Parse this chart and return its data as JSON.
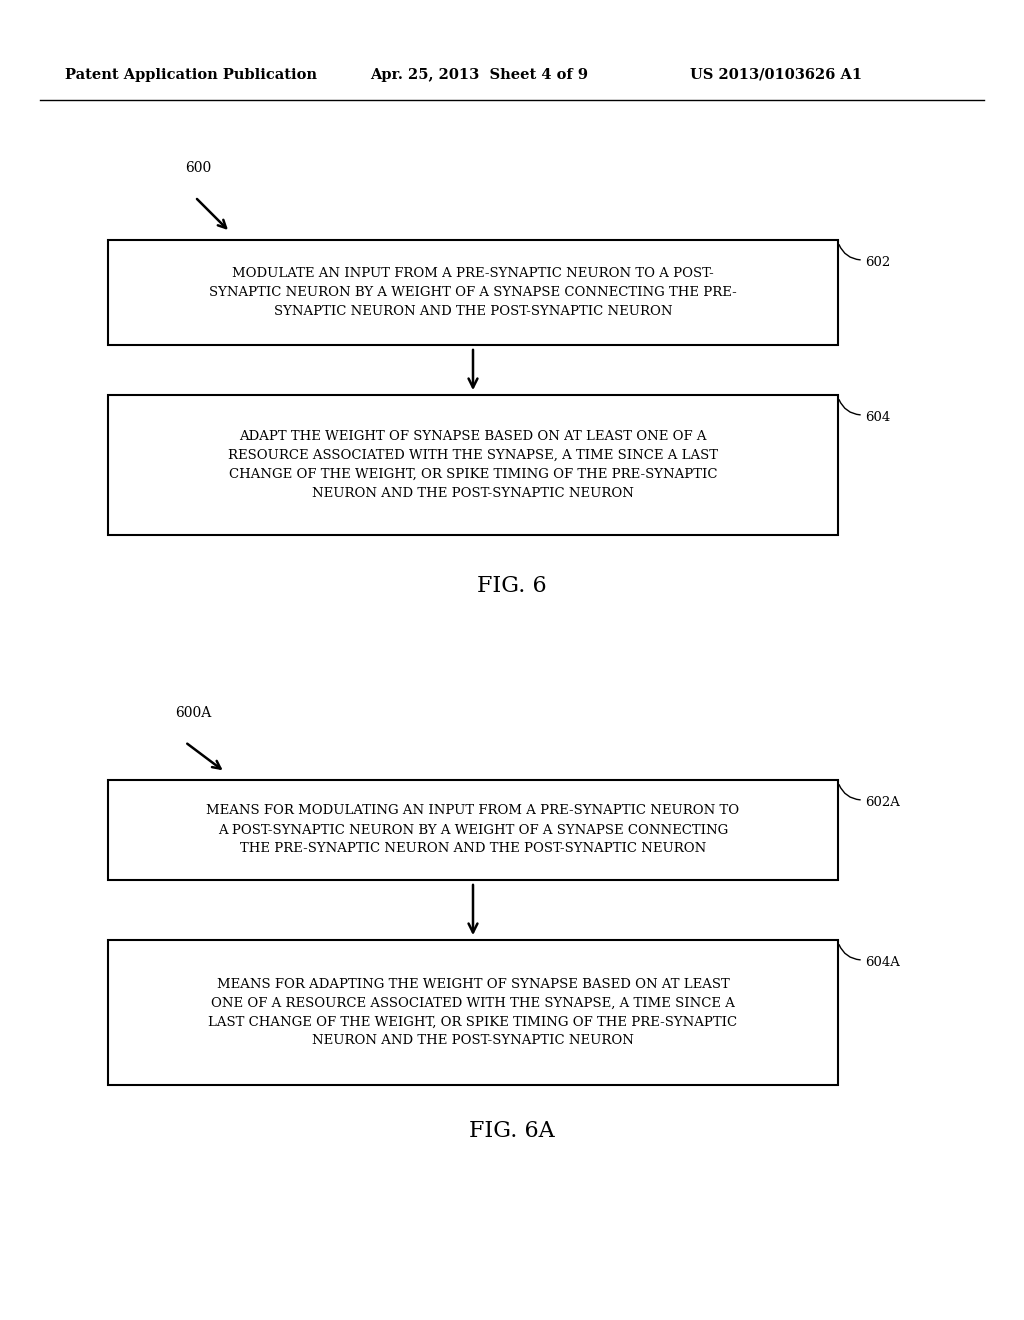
{
  "background_color": "#ffffff",
  "header_left": "Patent Application Publication",
  "header_date": "Apr. 25, 2013  Sheet 4 of 9",
  "header_patent": "US 2013/0103626 A1",
  "fig6": {
    "label": "FIG. 6",
    "start_label": "600",
    "box1_label": "602",
    "box2_label": "604",
    "box1_text": "MODULATE AN INPUT FROM A PRE-SYNAPTIC NEURON TO A POST-\nSYNAPTIC NEURON BY A WEIGHT OF A SYNAPSE CONNECTING THE PRE-\nSYNAPTIC NEURON AND THE POST-SYNAPTIC NEURON",
    "box2_text": "ADAPT THE WEIGHT OF SYNAPSE BASED ON AT LEAST ONE OF A\nRESOURCE ASSOCIATED WITH THE SYNAPSE, A TIME SINCE A LAST\nCHANGE OF THE WEIGHT, OR SPIKE TIMING OF THE PRE-SYNAPTIC\nNEURON AND THE POST-SYNAPTIC NEURON"
  },
  "fig6a": {
    "label": "FIG. 6A",
    "start_label": "600A",
    "box1_label": "602A",
    "box2_label": "604A",
    "box1_text": "MEANS FOR MODULATING AN INPUT FROM A PRE-SYNAPTIC NEURON TO\nA POST-SYNAPTIC NEURON BY A WEIGHT OF A SYNAPSE CONNECTING\nTHE PRE-SYNAPTIC NEURON AND THE POST-SYNAPTIC NEURON",
    "box2_text": "MEANS FOR ADAPTING THE WEIGHT OF SYNAPSE BASED ON AT LEAST\nONE OF A RESOURCE ASSOCIATED WITH THE SYNAPSE, A TIME SINCE A\nLAST CHANGE OF THE WEIGHT, OR SPIKE TIMING OF THE PRE-SYNAPTIC\nNEURON AND THE POST-SYNAPTIC NEURON"
  }
}
